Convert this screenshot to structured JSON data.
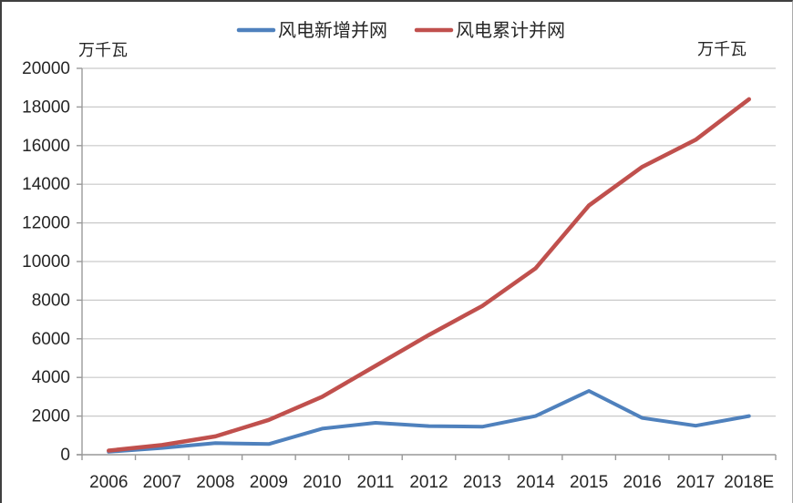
{
  "figure": {
    "unit_left": "万千瓦",
    "unit_right": "万千瓦"
  },
  "chart_data": {
    "type": "line",
    "title": "",
    "categories": [
      "2006",
      "2007",
      "2008",
      "2009",
      "2010",
      "2011",
      "2012",
      "2013",
      "2014",
      "2015",
      "2016",
      "2017",
      "2018E"
    ],
    "series": [
      {
        "name": "风电新增并网",
        "color": "#4f81bd",
        "values": [
          150,
          350,
          600,
          550,
          1350,
          1650,
          1480,
          1450,
          2000,
          3300,
          1900,
          1500,
          2000
        ]
      },
      {
        "name": "风电累计并网",
        "color": "#c0504d",
        "values": [
          210,
          500,
          950,
          1800,
          3000,
          4600,
          6200,
          7700,
          9650,
          12900,
          14900,
          16300,
          18400
        ]
      }
    ],
    "xlabel": "",
    "ylabel": "万千瓦",
    "ylim": [
      0,
      20000
    ],
    "y_tick_step": 2000,
    "y_tick_labels": [
      "0",
      "2000",
      "4000",
      "6000",
      "8000",
      "10000",
      "12000",
      "14000",
      "16000",
      "18000",
      "20000"
    ],
    "grid": true,
    "legend_position": "top-center",
    "grid_color": "#c9c9c9",
    "axis_color": "#999999",
    "text_color": "#262626"
  }
}
